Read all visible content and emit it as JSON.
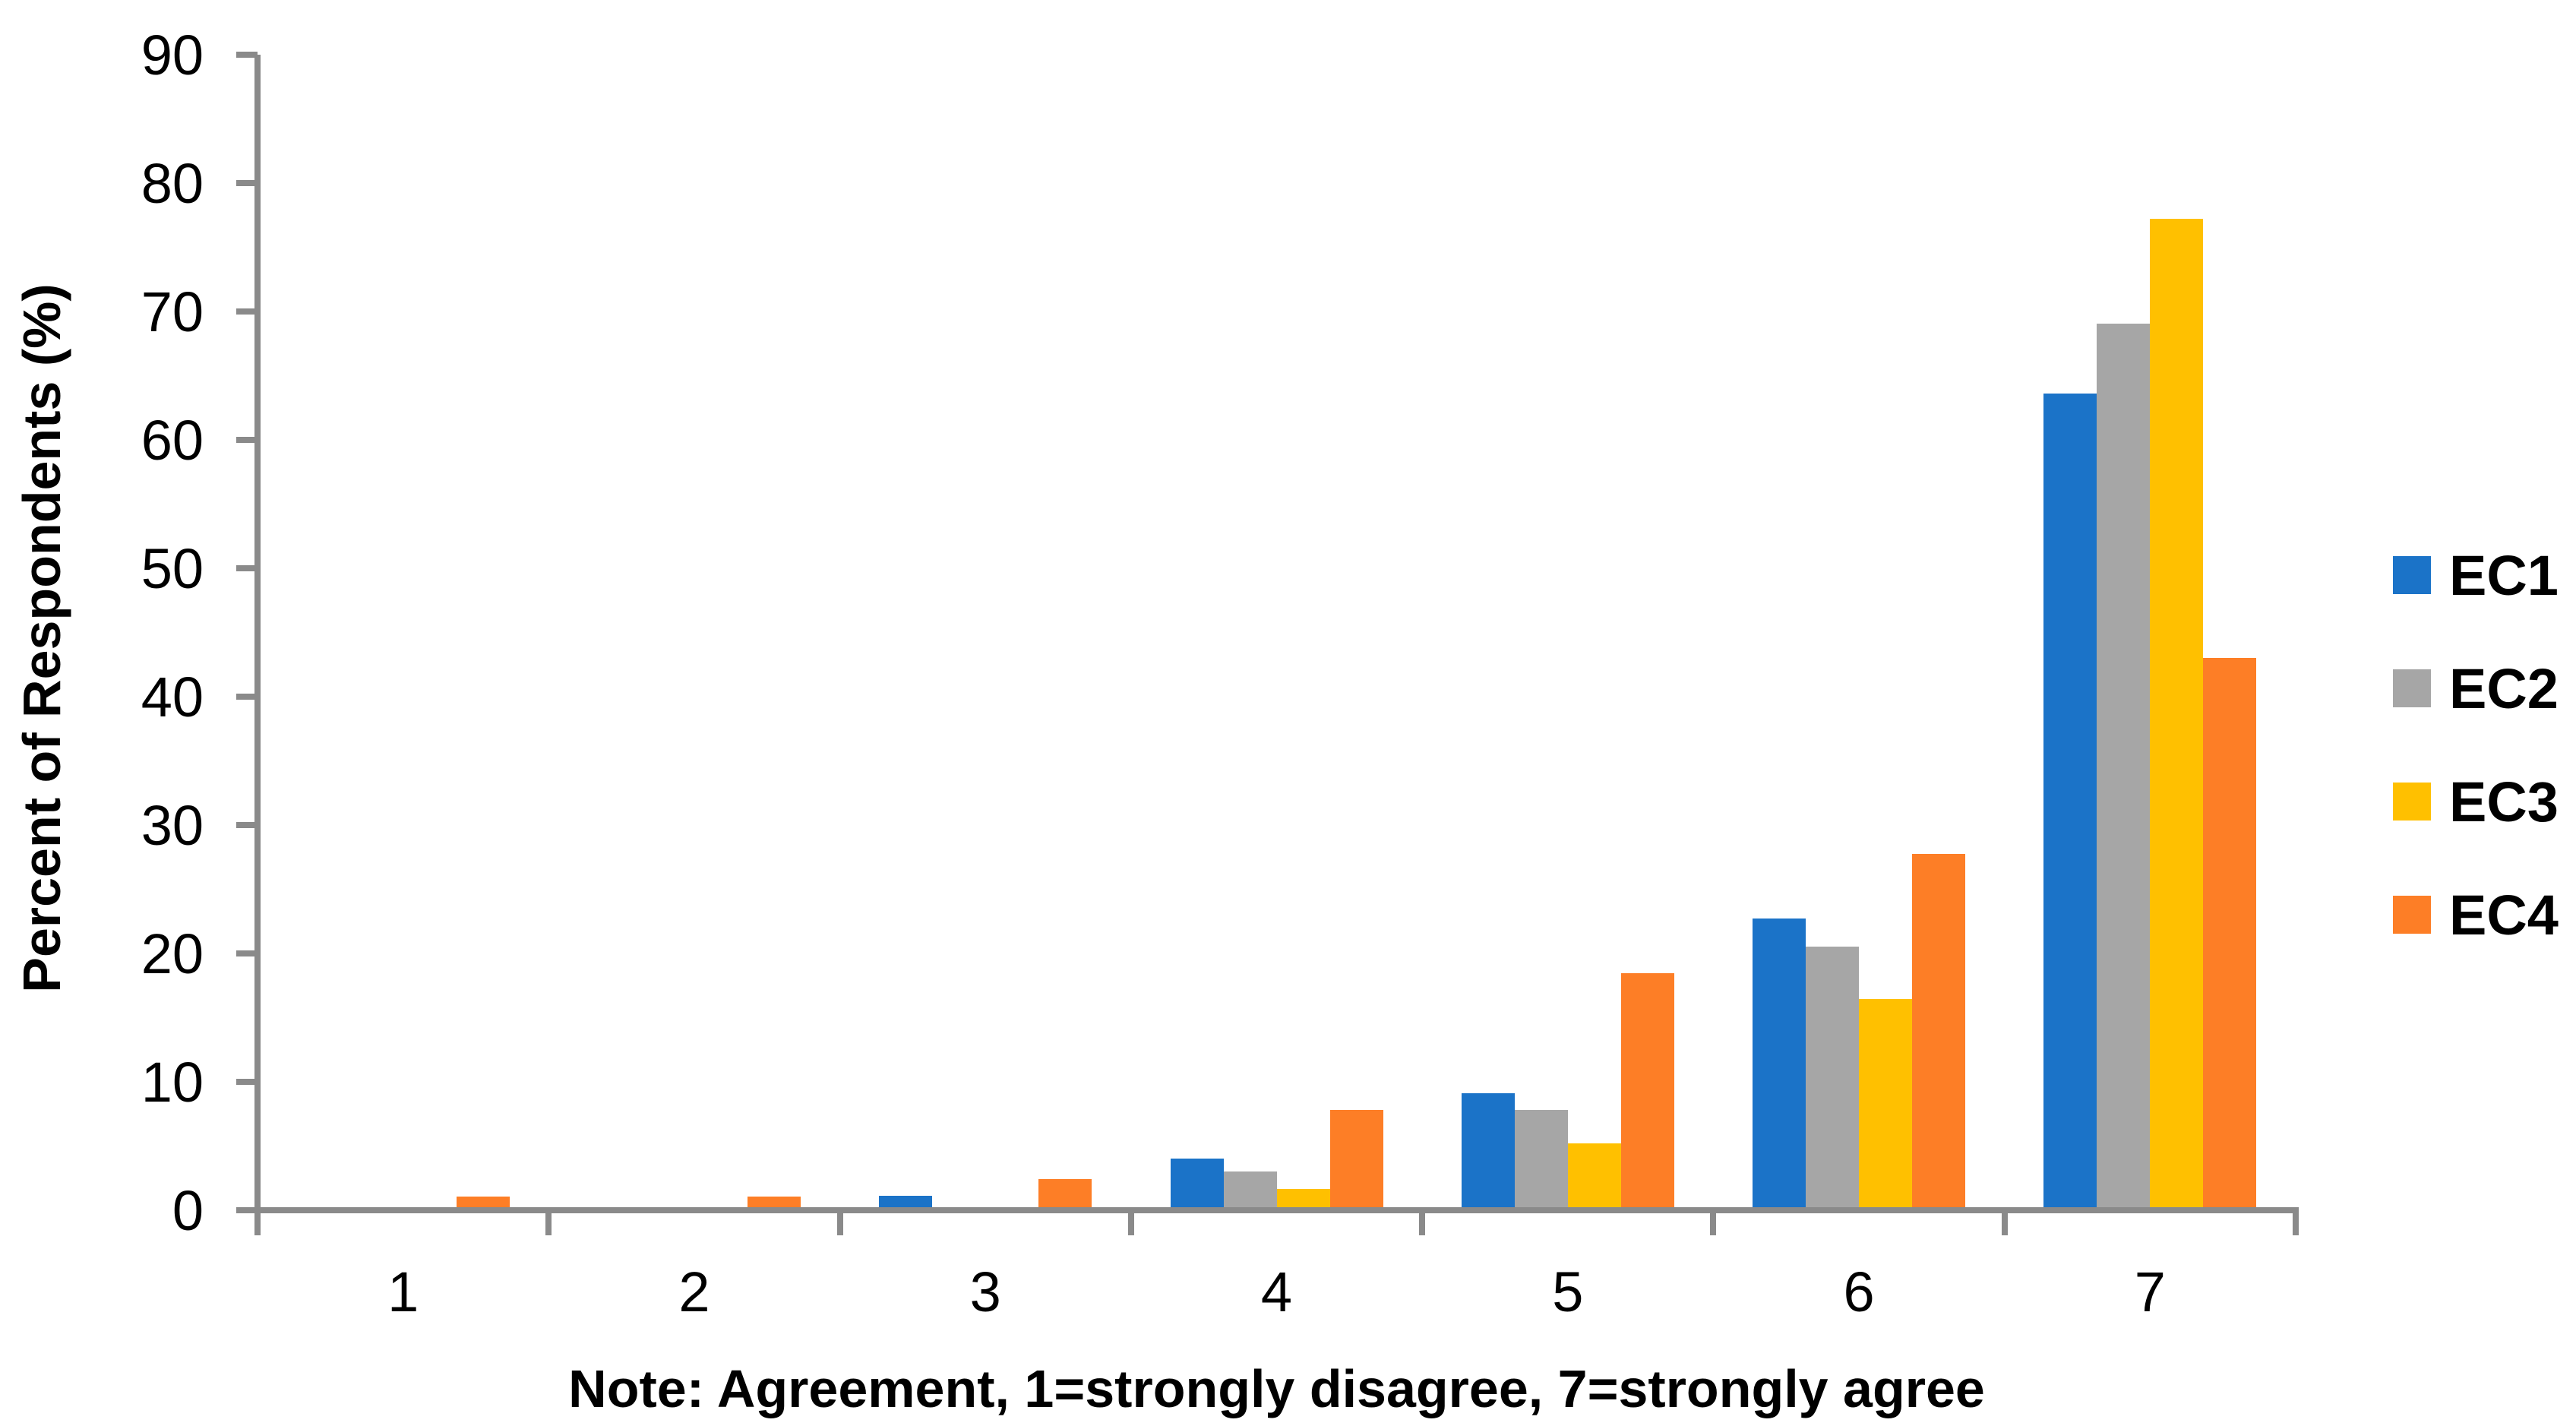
{
  "chart_data": {
    "type": "bar",
    "categories": [
      "1",
      "2",
      "3",
      "4",
      "5",
      "6",
      "7"
    ],
    "series": [
      {
        "name": "EC1",
        "color": "#1B73C8",
        "values": [
          0,
          0,
          0.9,
          3.8,
          8.9,
          22.5,
          63.4
        ]
      },
      {
        "name": "EC2",
        "color": "#A6A6A6",
        "values": [
          0,
          0,
          0,
          2.8,
          7.6,
          20.3,
          68.8
        ]
      },
      {
        "name": "EC3",
        "color": "#FFC000",
        "values": [
          0,
          0,
          0,
          1.4,
          5.0,
          16.2,
          77.0
        ]
      },
      {
        "name": "EC4",
        "color": "#FD7E26",
        "values": [
          0.8,
          0.8,
          2.2,
          7.6,
          18.2,
          27.5,
          42.8
        ]
      }
    ],
    "title": "",
    "xlabel": "Note: Agreement, 1=strongly disagree, 7=strongly agree",
    "ylabel": "Percent of Respondents (%)",
    "ylim": [
      0,
      90
    ],
    "ytick_step": 10,
    "grid": false,
    "legend_position": "right",
    "axis_color": "#8A8A8A",
    "text_color": "#000000",
    "background_color": "#FFFFFF"
  }
}
